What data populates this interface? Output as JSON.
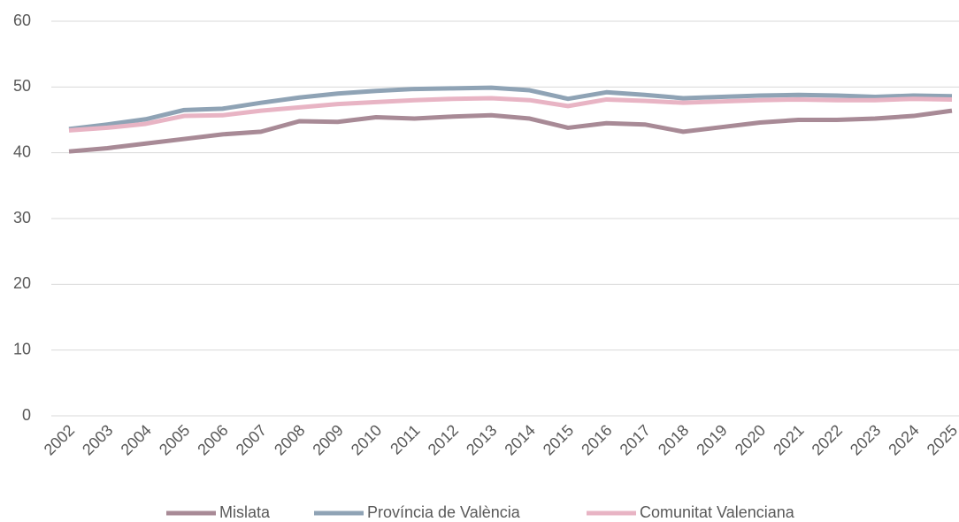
{
  "chart_data": {
    "type": "line",
    "categories": [
      "2002",
      "2003",
      "2004",
      "2005",
      "2006",
      "2007",
      "2008",
      "2009",
      "2010",
      "2011",
      "2012",
      "2013",
      "2014",
      "2015",
      "2016",
      "2017",
      "2018",
      "2019",
      "2020",
      "2021",
      "2022",
      "2023",
      "2024",
      "2025"
    ],
    "series": [
      {
        "name": "Mislata",
        "color": "#a88a96",
        "values": [
          40.2,
          40.7,
          41.4,
          42.1,
          42.8,
          43.2,
          44.8,
          44.7,
          45.4,
          45.2,
          45.5,
          45.7,
          45.2,
          43.8,
          44.5,
          44.3,
          43.2,
          43.9,
          44.6,
          45.0,
          45.0,
          45.2,
          45.6,
          46.4
        ]
      },
      {
        "name": "Província de València",
        "color": "#8fa3b5",
        "values": [
          43.6,
          44.3,
          45.1,
          46.5,
          46.7,
          47.6,
          48.4,
          49.0,
          49.4,
          49.7,
          49.8,
          49.9,
          49.5,
          48.2,
          49.2,
          48.8,
          48.3,
          48.5,
          48.7,
          48.8,
          48.7,
          48.5,
          48.7,
          48.6
        ]
      },
      {
        "name": "Comunitat Valenciana",
        "color": "#e8b4c4",
        "values": [
          43.4,
          43.8,
          44.4,
          45.6,
          45.7,
          46.4,
          46.9,
          47.4,
          47.7,
          48.0,
          48.2,
          48.3,
          48.0,
          47.1,
          48.1,
          47.9,
          47.6,
          47.8,
          48.0,
          48.1,
          48.0,
          48.0,
          48.2,
          48.1
        ]
      }
    ],
    "ylim": [
      0,
      60
    ],
    "yticks": [
      0,
      10,
      20,
      30,
      40,
      50,
      60
    ],
    "grid": true,
    "legend": "bottom"
  }
}
